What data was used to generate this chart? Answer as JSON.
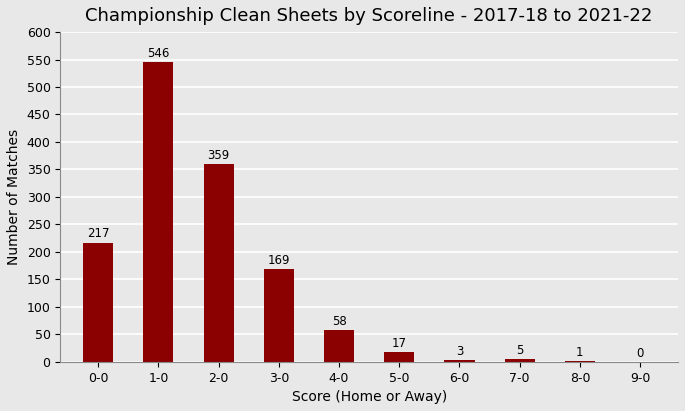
{
  "title": "Championship Clean Sheets by Scoreline - 2017-18 to 2021-22",
  "xlabel": "Score (Home or Away)",
  "ylabel": "Number of Matches",
  "categories": [
    "0-0",
    "1-0",
    "2-0",
    "3-0",
    "4-0",
    "5-0",
    "6-0",
    "7-0",
    "8-0",
    "9-0"
  ],
  "values": [
    217,
    546,
    359,
    169,
    58,
    17,
    3,
    5,
    1,
    0
  ],
  "bar_color": "#8B0000",
  "background_color": "#e8e8e8",
  "ylim": [
    0,
    600
  ],
  "yticks": [
    0,
    50,
    100,
    150,
    200,
    250,
    300,
    350,
    400,
    450,
    500,
    550,
    600
  ],
  "title_fontsize": 13,
  "label_fontsize": 10,
  "tick_fontsize": 9,
  "annotation_fontsize": 8.5,
  "grid_color": "#ffffff",
  "grid_linewidth": 1.2,
  "bar_width": 0.5
}
